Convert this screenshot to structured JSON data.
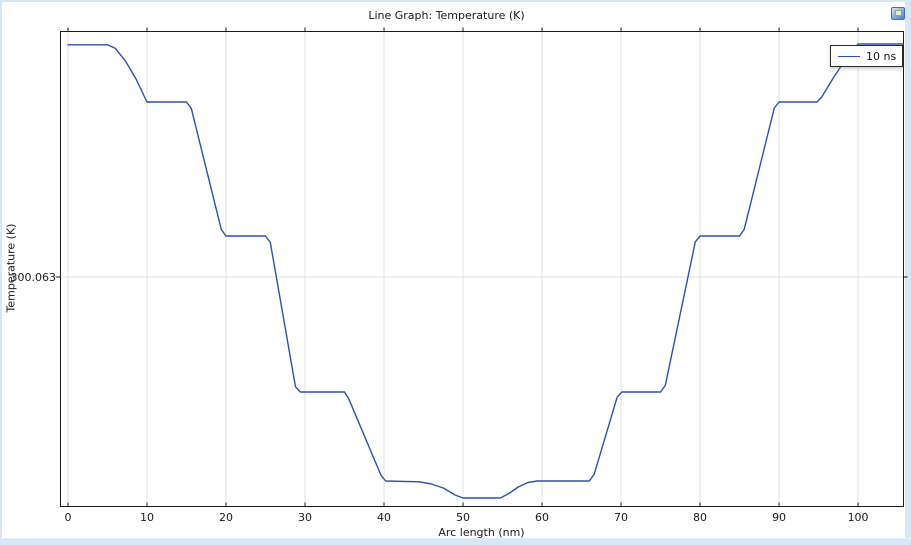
{
  "window": {
    "title": "Line Graph: Temperature (K)",
    "titlebar_icon": "plot-thumbnail-icon"
  },
  "chart_data": {
    "type": "line",
    "title": "Line Graph: Temperature (K)",
    "xlabel": "Arc length (nm)",
    "ylabel": "Temperature (K)",
    "x_ticks": [
      0,
      10,
      20,
      30,
      40,
      50,
      60,
      70,
      80,
      90,
      100
    ],
    "x_range": [
      -0.95,
      105.75
    ],
    "y_ticks": [
      {
        "label": "300.063",
        "axis_fraction": 0.4832
      }
    ],
    "y_value_encoding": "y given as fraction of plot height above bottom axis; only labeled y tick visible is 300.063 K at fraction 0.4832",
    "grid": true,
    "legend": {
      "position": "top-right",
      "entries": [
        {
          "label": "10 ns",
          "color": "#2b51b5"
        }
      ]
    },
    "series": [
      {
        "name": "10 ns",
        "color": "#2b51b5",
        "x_nm": [
          0,
          5,
          6,
          7.3,
          8.6,
          10,
          15,
          15.6,
          19.4,
          20,
          25,
          25.6,
          28.8,
          29.4,
          35,
          35.5,
          39.6,
          40.2,
          44.5,
          46,
          47.5,
          49,
          50,
          54.7,
          55.1,
          56,
          57,
          58.2,
          59.4,
          66,
          66.6,
          69.5,
          70.1,
          75,
          75.6,
          79.4,
          80,
          85,
          85.6,
          89.4,
          90,
          94.8,
          95.4,
          97,
          98.6,
          100,
          105.7
        ],
        "y_frac": [
          0.972,
          0.972,
          0.9645,
          0.937,
          0.9,
          0.8516,
          0.8516,
          0.838,
          0.583,
          0.5695,
          0.5695,
          0.556,
          0.252,
          0.2411,
          0.2411,
          0.228,
          0.066,
          0.0537,
          0.0519,
          0.0474,
          0.0389,
          0.0242,
          0.0179,
          0.0179,
          0.0211,
          0.0295,
          0.0411,
          0.0505,
          0.0537,
          0.0537,
          0.068,
          0.23,
          0.2411,
          0.2411,
          0.255,
          0.557,
          0.5695,
          0.5695,
          0.584,
          0.839,
          0.8516,
          0.8516,
          0.862,
          0.906,
          0.945,
          0.9737,
          0.9737
        ]
      }
    ]
  },
  "colors": {
    "curve": "#2b51b5",
    "grid": "#e2e2e2",
    "frame": "#1a1a1a",
    "text": "#1b1b1b",
    "window_border": "#d9e6f5",
    "legend_bg": "#ffffff",
    "legend_border": "#2a2a2a"
  }
}
